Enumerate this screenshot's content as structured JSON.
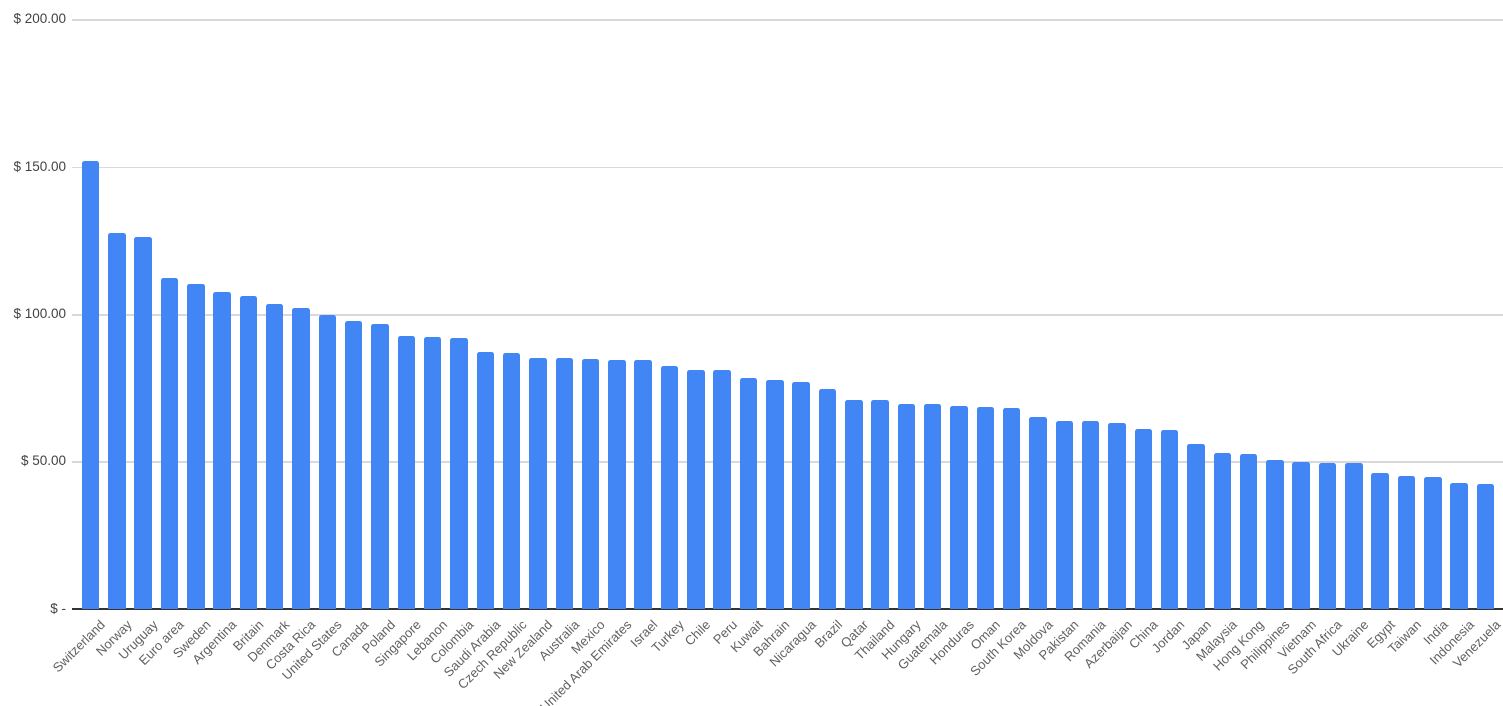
{
  "chart_data": {
    "type": "bar",
    "title": "",
    "xlabel": "",
    "ylabel": "",
    "ylim": [
      0,
      200
    ],
    "grid": true,
    "legend": "none",
    "y_ticks": [
      {
        "label": "$ 200.00",
        "value": 200
      },
      {
        "label": "$ 150.00",
        "value": 150
      },
      {
        "label": "$ 100.00",
        "value": 100
      },
      {
        "label": "$ 50.00",
        "value": 50
      },
      {
        "label": "$ -",
        "value": 0
      }
    ],
    "categories": [
      "Switzerland",
      "Norway",
      "Uruguay",
      "Euro area",
      "Sweden",
      "Argentina",
      "Britain",
      "Denmark",
      "Costa Rica",
      "United States",
      "Canada",
      "Poland",
      "Singapore",
      "Lebanon",
      "Colombia",
      "Saudi Arabia",
      "Czech Republic",
      "New Zealand",
      "Australia",
      "Mexico",
      "United Arab Emirates",
      "Israel",
      "Turkey",
      "Chile",
      "Peru",
      "Kuwait",
      "Bahrain",
      "Nicaragua",
      "Brazil",
      "Qatar",
      "Thailand",
      "Hungary",
      "Guatemala",
      "Honduras",
      "Oman",
      "South Korea",
      "Moldova",
      "Pakistan",
      "Romania",
      "Azerbaijan",
      "China",
      "Jordan",
      "Japan",
      "Malaysia",
      "Hong Kong",
      "Philippines",
      "Vietnam",
      "South Africa",
      "Ukraine",
      "Egypt",
      "Taiwan",
      "India",
      "Indonesia",
      "Venezuela"
    ],
    "values": [
      152.0,
      127.4,
      126.1,
      112.2,
      110.1,
      107.4,
      106.1,
      103.4,
      102.0,
      99.7,
      97.7,
      96.6,
      92.6,
      92.1,
      91.9,
      87.1,
      86.7,
      85.1,
      85.0,
      84.7,
      84.4,
      84.3,
      82.3,
      81.1,
      81.0,
      78.2,
      77.6,
      76.9,
      74.5,
      71.0,
      70.8,
      69.6,
      69.4,
      68.9,
      68.4,
      68.1,
      65.0,
      63.8,
      63.6,
      63.0,
      61.0,
      60.6,
      55.9,
      52.8,
      52.6,
      50.4,
      49.8,
      49.5,
      49.4,
      46.0,
      45.1,
      44.6,
      42.7,
      42.3
    ],
    "colors": {
      "bar": "#4285f4",
      "gridline": "#d9d9d9",
      "axis_line": "#333333",
      "y_tick_label": "#424242",
      "x_tick_label": "#616161",
      "background": "#ffffff"
    }
  }
}
